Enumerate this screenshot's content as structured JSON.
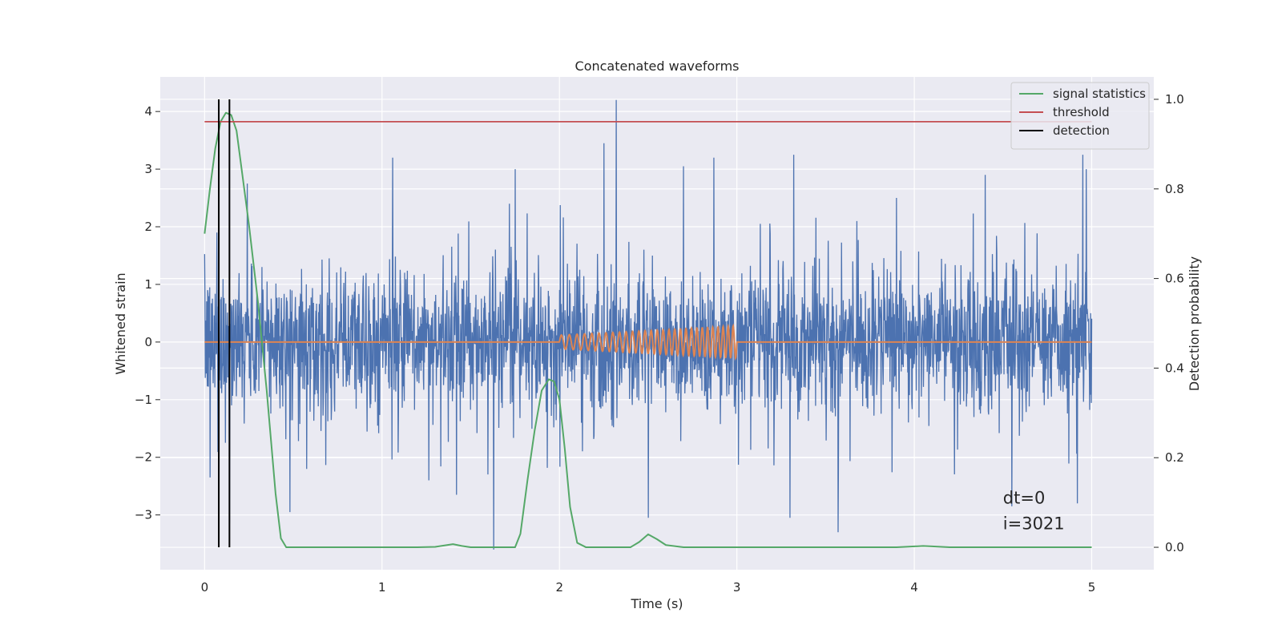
{
  "chart_data": {
    "type": "line",
    "title": "Concatenated waveforms",
    "xlabel": "Time (s)",
    "ylabel": "Whitened strain",
    "ylabel_right": "Detection probability",
    "xlim": [
      -0.25,
      5.35
    ],
    "ylim": [
      -3.95,
      4.6
    ],
    "ylim_right": [
      -0.05,
      1.05
    ],
    "x_ticks": [
      0,
      1,
      2,
      3,
      4,
      5
    ],
    "y_ticks": [
      -3,
      -2,
      -1,
      0,
      1,
      2,
      3,
      4
    ],
    "y_ticks_right": [
      0.0,
      0.2,
      0.4,
      0.6,
      0.8,
      1.0
    ],
    "x_tick_labels": [
      "0",
      "1",
      "2",
      "3",
      "4",
      "5"
    ],
    "y_tick_labels": [
      "−3",
      "−2",
      "−1",
      "0",
      "1",
      "2",
      "3",
      "4"
    ],
    "y_tick_labels_right": [
      "0.0",
      "0.2",
      "0.4",
      "0.6",
      "0.8",
      "1.0"
    ],
    "grid": true,
    "legend_position": "top-right",
    "series": [
      {
        "name": "",
        "kind": "noise",
        "axis": "left",
        "color": "#4c72b0",
        "x_range": [
          0,
          5
        ],
        "typical_range": [
          -1.1,
          1.1
        ],
        "peaks": [
          [
            0.07,
            1.9
          ],
          [
            0.24,
            2.75
          ],
          [
            1.06,
            3.2
          ],
          [
            1.75,
            3.0
          ],
          [
            2.25,
            3.45
          ],
          [
            2.32,
            4.2
          ],
          [
            2.7,
            3.05
          ],
          [
            2.87,
            3.2
          ],
          [
            3.32,
            3.25
          ],
          [
            3.9,
            2.5
          ],
          [
            4.4,
            2.9
          ],
          [
            4.95,
            3.25
          ],
          [
            4.97,
            3.0
          ]
        ],
        "troughs": [
          [
            0.03,
            -2.35
          ],
          [
            0.14,
            -3.15
          ],
          [
            0.48,
            -2.95
          ],
          [
            1.42,
            -2.65
          ],
          [
            1.63,
            -3.6
          ],
          [
            2.5,
            -3.05
          ],
          [
            3.3,
            -3.05
          ],
          [
            3.57,
            -3.3
          ],
          [
            4.55,
            -2.85
          ],
          [
            4.92,
            -2.8
          ]
        ]
      },
      {
        "name": "",
        "kind": "chirp",
        "axis": "left",
        "color": "#dd8452",
        "x_range": [
          0,
          5
        ],
        "chirp_start": 2.0,
        "chirp_end": 3.0,
        "amplitude_start": 0.12,
        "amplitude_end": 0.28,
        "cycles_start_per_s": 22,
        "cycles_end_per_s": 36
      },
      {
        "name": "signal statistics",
        "axis": "right",
        "color": "#55a868",
        "points": [
          [
            0.0,
            0.7
          ],
          [
            0.03,
            0.8
          ],
          [
            0.06,
            0.89
          ],
          [
            0.09,
            0.95
          ],
          [
            0.12,
            0.97
          ],
          [
            0.15,
            0.965
          ],
          [
            0.18,
            0.93
          ],
          [
            0.21,
            0.84
          ],
          [
            0.25,
            0.72
          ],
          [
            0.3,
            0.55
          ],
          [
            0.35,
            0.35
          ],
          [
            0.4,
            0.12
          ],
          [
            0.43,
            0.02
          ],
          [
            0.46,
            0.0
          ],
          [
            0.5,
            0.0
          ],
          [
            1.2,
            0.0
          ],
          [
            1.3,
            0.001
          ],
          [
            1.4,
            0.007
          ],
          [
            1.45,
            0.003
          ],
          [
            1.5,
            0.0
          ],
          [
            1.75,
            0.0
          ],
          [
            1.78,
            0.03
          ],
          [
            1.82,
            0.15
          ],
          [
            1.86,
            0.26
          ],
          [
            1.9,
            0.35
          ],
          [
            1.94,
            0.375
          ],
          [
            1.97,
            0.37
          ],
          [
            2.0,
            0.33
          ],
          [
            2.03,
            0.22
          ],
          [
            2.06,
            0.09
          ],
          [
            2.1,
            0.01
          ],
          [
            2.15,
            0.0
          ],
          [
            2.4,
            0.0
          ],
          [
            2.45,
            0.012
          ],
          [
            2.5,
            0.029
          ],
          [
            2.55,
            0.018
          ],
          [
            2.6,
            0.005
          ],
          [
            2.7,
            0.0
          ],
          [
            3.9,
            0.0
          ],
          [
            4.05,
            0.003
          ],
          [
            4.1,
            0.002
          ],
          [
            4.2,
            0.0
          ],
          [
            5.0,
            0.0
          ]
        ]
      },
      {
        "name": "threshold",
        "axis": "right",
        "color": "#c44e52",
        "y": 0.95,
        "x_range": [
          0,
          5
        ]
      },
      {
        "name": "detection",
        "axis": "right",
        "color": "#000000",
        "x": [
          0.08,
          0.14
        ],
        "y_range": [
          0.0,
          1.0
        ]
      }
    ],
    "annotations": [
      {
        "text": "dt=0",
        "x": 4.5,
        "y": -2.8
      },
      {
        "text": "i=3021",
        "x": 4.5,
        "y": -3.25
      }
    ]
  }
}
